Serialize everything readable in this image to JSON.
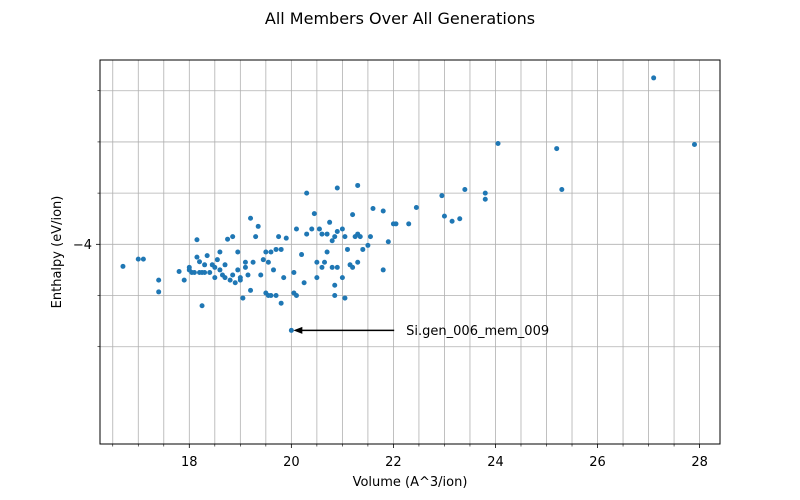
{
  "chart_data": {
    "type": "scatter",
    "title": "All Members Over All Generations",
    "xlabel": "Volume (A^3/ion)",
    "ylabel": "Enthalpy (eV/ion)",
    "xlim": [
      16.25,
      28.4
    ],
    "ylim": [
      -4.39,
      -3.64
    ],
    "x_ticks": [
      18,
      20,
      22,
      24,
      26,
      28
    ],
    "x_tick_labels": [
      "18",
      "20",
      "22",
      "24",
      "26",
      "28"
    ],
    "x_minor_ticks": [
      16.5,
      17,
      17.5,
      18.5,
      19,
      19.5,
      20.5,
      21,
      21.5,
      22.5,
      23,
      23.5,
      24.5,
      25,
      25.5,
      26.5,
      27,
      27.5
    ],
    "y_ticks": [
      -4
    ],
    "y_tick_labels": [
      "−4"
    ],
    "y_minor_ticks": [
      -4.2,
      -4.1,
      -3.9,
      -3.8,
      -3.7
    ],
    "grid": true,
    "color": "#1f77b4",
    "annotation": {
      "text": "Si.gen_006_mem_009",
      "point": [
        20.0,
        -4.168
      ],
      "text_pos": [
        22.25,
        -4.168
      ]
    },
    "points": [
      [
        16.7,
        -4.043
      ],
      [
        17.0,
        -4.029
      ],
      [
        17.1,
        -4.029
      ],
      [
        17.4,
        -4.07
      ],
      [
        17.4,
        -4.093
      ],
      [
        17.8,
        -4.053
      ],
      [
        17.9,
        -4.07
      ],
      [
        18.0,
        -4.045
      ],
      [
        18.0,
        -4.05
      ],
      [
        18.05,
        -4.055
      ],
      [
        18.1,
        -4.055
      ],
      [
        18.15,
        -4.025
      ],
      [
        18.15,
        -3.991
      ],
      [
        18.2,
        -4.055
      ],
      [
        18.2,
        -4.034
      ],
      [
        18.25,
        -4.055
      ],
      [
        18.25,
        -4.12
      ],
      [
        18.3,
        -4.04
      ],
      [
        18.3,
        -4.055
      ],
      [
        18.35,
        -4.022
      ],
      [
        18.4,
        -4.055
      ],
      [
        18.45,
        -4.04
      ],
      [
        18.5,
        -4.045
      ],
      [
        18.5,
        -4.065
      ],
      [
        18.55,
        -4.03
      ],
      [
        18.6,
        -4.05
      ],
      [
        18.6,
        -4.015
      ],
      [
        18.65,
        -4.06
      ],
      [
        18.7,
        -4.065
      ],
      [
        18.7,
        -4.04
      ],
      [
        18.75,
        -3.99
      ],
      [
        18.8,
        -4.07
      ],
      [
        18.85,
        -3.985
      ],
      [
        18.85,
        -4.06
      ],
      [
        18.9,
        -4.075
      ],
      [
        18.95,
        -4.015
      ],
      [
        18.95,
        -4.05
      ],
      [
        19.0,
        -4.07
      ],
      [
        19.0,
        -4.065
      ],
      [
        19.05,
        -4.105
      ],
      [
        19.1,
        -4.045
      ],
      [
        19.1,
        -4.035
      ],
      [
        19.15,
        -4.06
      ],
      [
        19.2,
        -4.09
      ],
      [
        19.2,
        -3.949
      ],
      [
        19.25,
        -4.035
      ],
      [
        19.3,
        -3.985
      ],
      [
        19.35,
        -3.965
      ],
      [
        19.4,
        -4.06
      ],
      [
        19.45,
        -4.03
      ],
      [
        19.5,
        -4.095
      ],
      [
        19.5,
        -4.015
      ],
      [
        19.55,
        -4.1
      ],
      [
        19.55,
        -4.035
      ],
      [
        19.6,
        -4.015
      ],
      [
        19.6,
        -4.1
      ],
      [
        19.65,
        -4.05
      ],
      [
        19.7,
        -4.01
      ],
      [
        19.7,
        -4.1
      ],
      [
        19.75,
        -3.985
      ],
      [
        19.8,
        -4.115
      ],
      [
        19.8,
        -4.01
      ],
      [
        19.85,
        -4.065
      ],
      [
        19.9,
        -3.988
      ],
      [
        20.0,
        -4.168
      ],
      [
        20.05,
        -4.055
      ],
      [
        20.05,
        -4.095
      ],
      [
        20.1,
        -3.97
      ],
      [
        20.1,
        -4.1
      ],
      [
        20.2,
        -4.02
      ],
      [
        20.25,
        -4.075
      ],
      [
        20.3,
        -3.98
      ],
      [
        20.3,
        -3.9
      ],
      [
        20.4,
        -3.97
      ],
      [
        20.45,
        -3.94
      ],
      [
        20.5,
        -4.065
      ],
      [
        20.5,
        -4.035
      ],
      [
        20.55,
        -3.97
      ],
      [
        20.6,
        -3.98
      ],
      [
        20.6,
        -4.045
      ],
      [
        20.65,
        -4.035
      ],
      [
        20.7,
        -3.98
      ],
      [
        20.7,
        -4.015
      ],
      [
        20.75,
        -3.957
      ],
      [
        20.8,
        -3.993
      ],
      [
        20.8,
        -4.045
      ],
      [
        20.85,
        -4.1
      ],
      [
        20.85,
        -3.985
      ],
      [
        20.9,
        -4.045
      ],
      [
        20.9,
        -3.975
      ],
      [
        21.0,
        -4.065
      ],
      [
        21.0,
        -3.97
      ],
      [
        21.05,
        -3.985
      ],
      [
        21.05,
        -4.105
      ],
      [
        21.1,
        -4.01
      ],
      [
        21.15,
        -4.04
      ],
      [
        21.2,
        -3.942
      ],
      [
        21.2,
        -4.045
      ],
      [
        21.25,
        -3.985
      ],
      [
        21.3,
        -3.98
      ],
      [
        21.3,
        -4.035
      ],
      [
        21.35,
        -3.985
      ],
      [
        21.4,
        -4.01
      ],
      [
        21.5,
        -4.002
      ],
      [
        21.55,
        -3.985
      ],
      [
        21.6,
        -3.93
      ],
      [
        21.8,
        -4.05
      ],
      [
        21.8,
        -3.935
      ],
      [
        21.9,
        -3.995
      ],
      [
        22.0,
        -3.96
      ],
      [
        22.05,
        -3.96
      ],
      [
        22.3,
        -3.96
      ],
      [
        22.45,
        -3.928
      ],
      [
        22.95,
        -3.905
      ],
      [
        23.0,
        -3.945
      ],
      [
        23.15,
        -3.955
      ],
      [
        23.3,
        -3.95
      ],
      [
        23.4,
        -3.893
      ],
      [
        23.8,
        -3.9
      ],
      [
        23.8,
        -3.912
      ],
      [
        24.05,
        -3.803
      ],
      [
        25.2,
        -3.813
      ],
      [
        25.3,
        -3.893
      ],
      [
        21.3,
        -3.885
      ],
      [
        20.9,
        -3.89
      ],
      [
        20.85,
        -4.08
      ],
      [
        27.1,
        -3.675
      ],
      [
        27.9,
        -3.805
      ]
    ]
  }
}
